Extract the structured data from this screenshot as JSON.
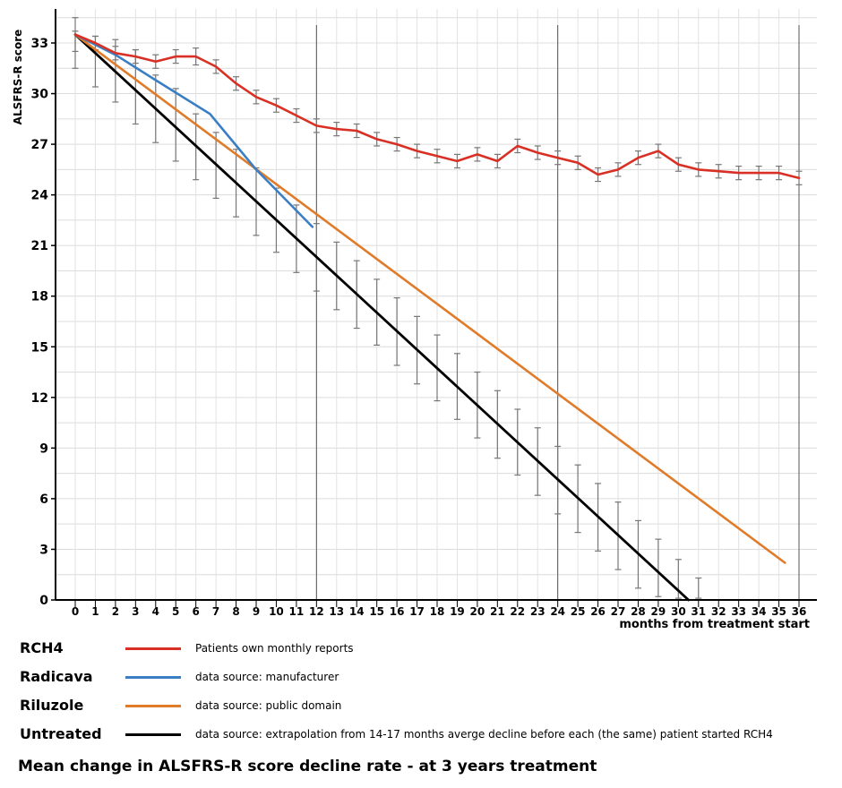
{
  "chart_data": {
    "type": "line",
    "title": "Mean change in ALSFRS-R score decline rate - at 3 years treatment",
    "xlabel": "months from treatment start",
    "ylabel": "ALSFRS-R score",
    "xlim": [
      0,
      36
    ],
    "ylim": [
      0,
      33
    ],
    "x_ticks": [
      0,
      1,
      2,
      3,
      4,
      5,
      6,
      7,
      8,
      9,
      10,
      11,
      12,
      13,
      14,
      15,
      16,
      17,
      18,
      19,
      20,
      21,
      22,
      23,
      24,
      25,
      26,
      27,
      28,
      29,
      30,
      31,
      32,
      33,
      34,
      35,
      36
    ],
    "y_ticks": [
      0,
      3,
      6,
      9,
      12,
      15,
      18,
      21,
      24,
      27,
      30,
      33
    ],
    "grid": true,
    "year_lines": [
      12,
      24,
      36
    ],
    "legend_position": "bottom",
    "series": [
      {
        "name": "RCH4",
        "description": "Patients own monthly reports",
        "color": "#d93025",
        "x": [
          0,
          1,
          2,
          3,
          4,
          5,
          6,
          7,
          8,
          9,
          10,
          11,
          12,
          13,
          14,
          15,
          16,
          17,
          18,
          19,
          20,
          21,
          22,
          23,
          24,
          25,
          26,
          27,
          28,
          29,
          30,
          31,
          32,
          33,
          34,
          35,
          36
        ],
        "values": [
          33.5,
          33.0,
          32.4,
          32.2,
          31.9,
          32.2,
          32.2,
          31.6,
          30.6,
          29.8,
          29.3,
          28.7,
          28.1,
          27.9,
          27.8,
          27.3,
          27.0,
          26.6,
          26.3,
          26.0,
          26.4,
          26.0,
          26.9,
          26.5,
          26.2,
          25.9,
          25.2,
          25.5,
          26.2,
          26.6,
          25.8,
          25.5,
          25.4,
          25.3,
          25.3,
          25.3,
          25.0
        ],
        "error": [
          1.0,
          0.4,
          0.4,
          0.4,
          0.4,
          0.4,
          0.5,
          0.4,
          0.4,
          0.4,
          0.4,
          0.4,
          0.4,
          0.4,
          0.4,
          0.4,
          0.4,
          0.4,
          0.4,
          0.4,
          0.4,
          0.4,
          0.4,
          0.4,
          0.4,
          0.4,
          0.4,
          0.4,
          0.4,
          0.4,
          0.4,
          0.4,
          0.4,
          0.4,
          0.4,
          0.4,
          0.4
        ]
      },
      {
        "name": "Radicava",
        "description": "data source: manufacturer",
        "color": "#3a7fc4",
        "x": [
          0,
          2,
          4,
          6.7,
          9,
          11.8
        ],
        "values": [
          33.5,
          32.3,
          30.8,
          28.8,
          25.5,
          22.1
        ]
      },
      {
        "name": "Riluzole",
        "description": "data source: public domain",
        "color": "#e07b2a",
        "x": [
          0,
          35.3
        ],
        "values": [
          33.5,
          2.2
        ]
      },
      {
        "name": "Untreated",
        "description": "data source: extrapolation from 14-17 months averge decline before each (the same) patient started RCH4",
        "color": "#000000",
        "x": [
          0,
          30.5
        ],
        "values": [
          33.5,
          0
        ],
        "error_x": [
          0,
          1,
          2,
          3,
          4,
          5,
          6,
          7,
          8,
          9,
          10,
          11,
          12,
          13,
          14,
          15,
          16,
          17,
          18,
          19,
          20,
          21,
          22,
          23,
          24,
          25,
          26,
          27,
          28,
          29,
          30,
          31
        ],
        "error_center": [
          32.7,
          31.9,
          31.1,
          30.4,
          29.7,
          28.8,
          27.9,
          27.1,
          26.3,
          25.4,
          24.5,
          23.6,
          22.6,
          21.6,
          20.6,
          19.6,
          18.6,
          17.6,
          16.6,
          15.6,
          14.6,
          13.6,
          12.6,
          11.6,
          10.6,
          9.6,
          8.6,
          7.6,
          6.6,
          5.6,
          4.6,
          3.6
        ],
        "error_lower": [
          31.5,
          30.4,
          29.5,
          28.2,
          27.1,
          26.0,
          24.9,
          23.8,
          22.7,
          21.6,
          20.6,
          19.4,
          18.3,
          17.2,
          16.1,
          15.1,
          13.9,
          12.8,
          11.8,
          10.7,
          9.6,
          8.4,
          7.4,
          6.2,
          5.1,
          4.0,
          2.9,
          1.8,
          0.7,
          0.2,
          0.1,
          0.1
        ],
        "error_upper": [
          33.7,
          33.4,
          33.2,
          32.6,
          31.1,
          30.3,
          28.8,
          27.7,
          26.7,
          25.6,
          24.4,
          23.4,
          22.3,
          21.2,
          20.1,
          19.0,
          17.9,
          16.8,
          15.7,
          14.6,
          13.5,
          12.4,
          11.3,
          10.2,
          9.1,
          8.0,
          6.9,
          5.8,
          4.7,
          3.6,
          2.4,
          1.3
        ]
      }
    ]
  }
}
